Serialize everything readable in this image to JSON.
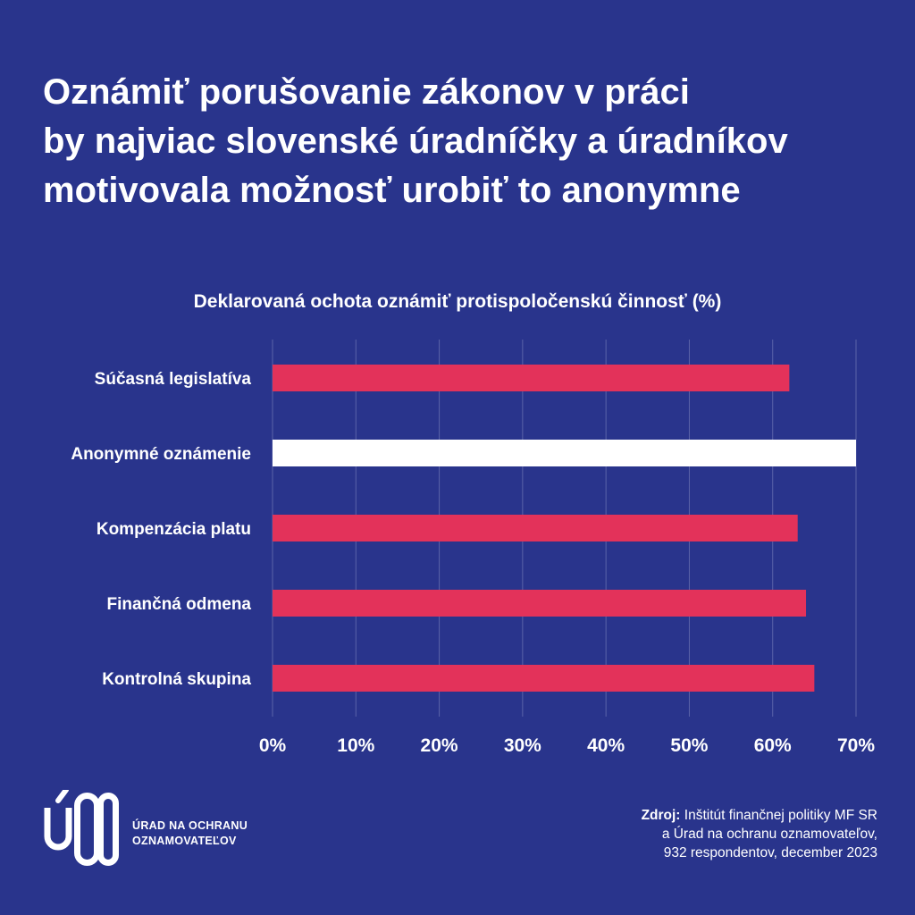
{
  "title_lines": [
    "Oznámiť porušovanie zákonov v práci",
    "by najviac slovenské úradníčky a úradníkov",
    "motivovala možnosť urobiť to anonymne"
  ],
  "logo": {
    "text": "ÚOO"
  },
  "org_name_lines": [
    "ÚRAD NA OCHRANU",
    "OZNAMOVATEĽOV"
  ],
  "source": {
    "label": "Zdroj:",
    "line1": " Inštitút finančnej politiky MF SR",
    "line2": "a Úrad na ochranu oznamovateľov,",
    "line3": "932 respondentov, december 2023"
  },
  "chart_data": {
    "type": "bar",
    "orientation": "horizontal",
    "title": "Deklarovaná ochota oznámiť protispoločenskú činnosť (%)",
    "categories": [
      "Súčasná legislatíva",
      "Anonymné oznámenie",
      "Kompenzácia platu",
      "Finančná odmena",
      "Kontrolná skupina"
    ],
    "values": [
      62,
      70,
      63,
      64,
      65
    ],
    "highlight_index": 1,
    "xlim": [
      0,
      70
    ],
    "xticks": [
      0,
      10,
      20,
      30,
      40,
      50,
      60,
      70
    ],
    "tick_labels": [
      "0%",
      "10%",
      "20%",
      "30%",
      "40%",
      "50%",
      "60%",
      "70%"
    ],
    "grid": true,
    "colors": {
      "bar": "#e3325a",
      "highlight": "#ffffff",
      "grid": "#5a63a8",
      "background": "#29348c"
    }
  }
}
